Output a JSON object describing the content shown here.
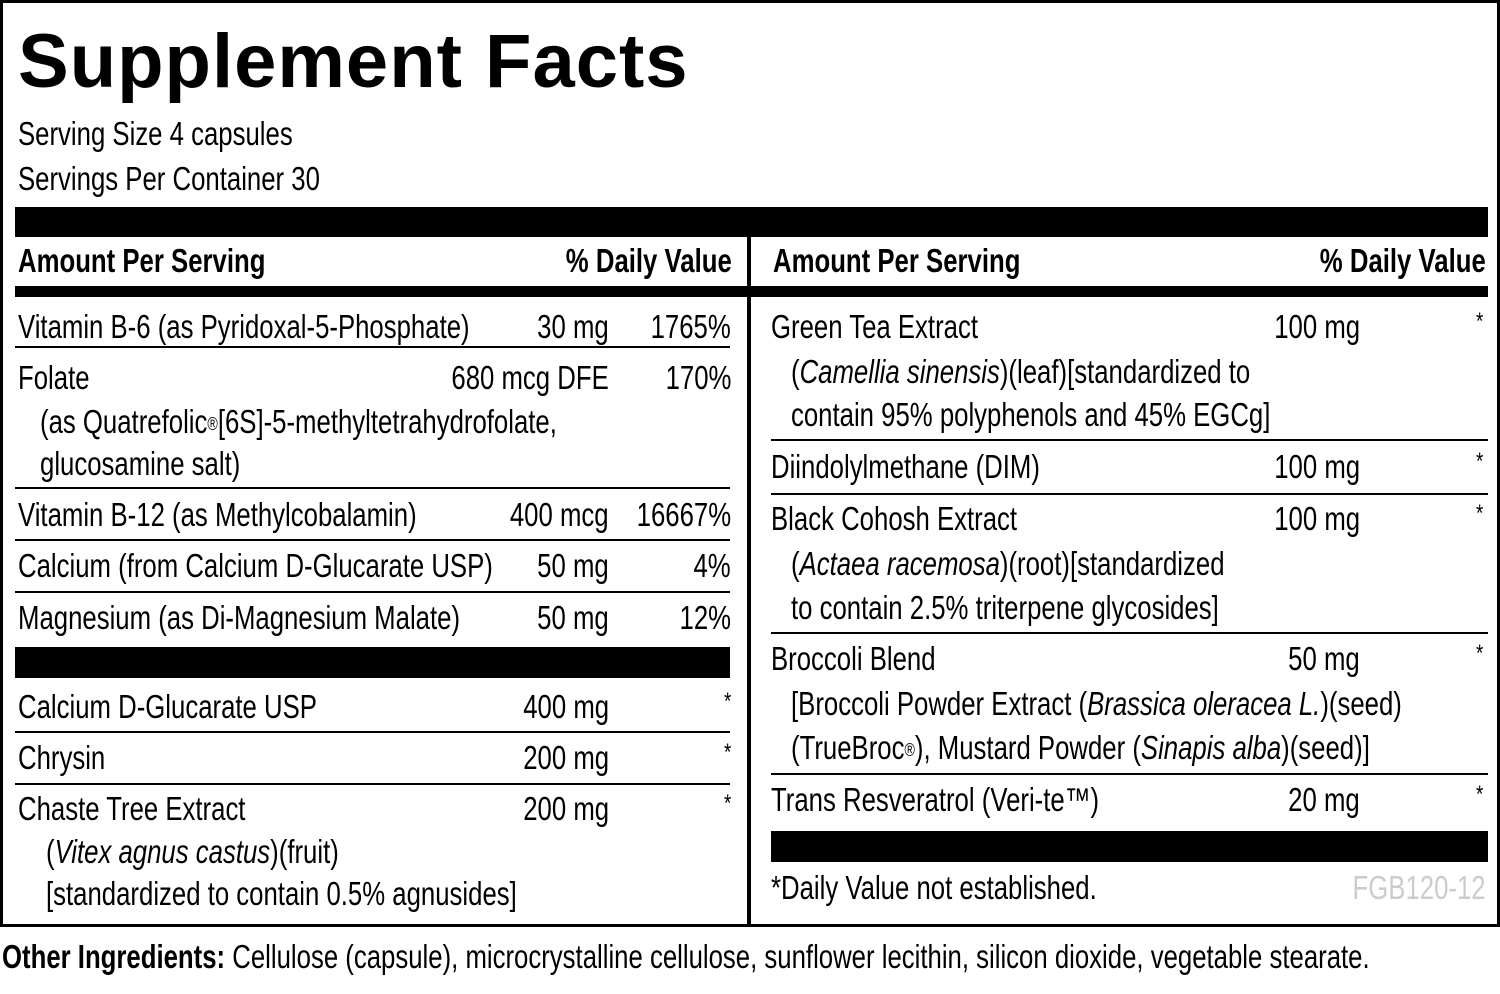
{
  "title": "Supplement Facts",
  "serving_size": "Serving Size 4 capsules",
  "servings_per_container": "Servings Per Container 30",
  "header": {
    "amount": "Amount Per Serving",
    "dv": "% Daily Value"
  },
  "left": {
    "b6": {
      "name": "Vitamin B-6 (as Pyridoxal-5-Phosphate)",
      "amount": "30 mg",
      "dv": "1765%"
    },
    "folate": {
      "name": "Folate",
      "sub1a": "(as Quatrefolic",
      "sub1reg": "®",
      "sub1b": "[6S]-5-methyltetrahydrofolate,",
      "sub2": "glucosamine salt)",
      "amount": "680 mcg DFE",
      "dv": "170%"
    },
    "b12": {
      "name": "Vitamin B-12 (as Methylcobalamin)",
      "amount": "400 mcg",
      "dv": "16667%"
    },
    "calcium": {
      "name": "Calcium (from Calcium D-Glucarate USP)",
      "amount": "50 mg",
      "dv": "4%"
    },
    "magnesium": {
      "name": "Magnesium (as Di-Magnesium Malate)",
      "amount": "50 mg",
      "dv": "12%"
    },
    "glucarate": {
      "name": "Calcium D-Glucarate USP",
      "amount": "400 mg",
      "dv": "*"
    },
    "chrysin": {
      "name": "Chrysin",
      "amount": "200 mg",
      "dv": "*"
    },
    "chaste": {
      "name": "Chaste Tree Extract",
      "sub1a": "(",
      "sub1i": "Vitex agnus castus",
      "sub1b": ")(fruit)",
      "sub2": "[standardized to contain 0.5% agnusides]",
      "amount": "200 mg",
      "dv": "*"
    }
  },
  "right": {
    "greentea": {
      "name": "Green Tea Extract",
      "sub1a": "(",
      "sub1i": "Camellia sinensis",
      "sub1b": ")(leaf)[standardized to",
      "sub2": "contain 95% polyphenols and 45% EGCg]",
      "amount": "100 mg",
      "dv": "*"
    },
    "dim": {
      "name": "Diindolylmethane (DIM)",
      "amount": "100 mg",
      "dv": "*"
    },
    "cohosh": {
      "name": "Black Cohosh Extract",
      "sub1a": "(",
      "sub1i": "Actaea racemosa",
      "sub1b": ")(root)[standardized",
      "sub2": "to contain 2.5% triterpene glycosides]",
      "amount": "100 mg",
      "dv": "*"
    },
    "broccoli": {
      "name": "Broccoli Blend",
      "sub1a": "[Broccoli Powder Extract (",
      "sub1i": "Brassica oleracea L.",
      "sub1b": ")(seed)",
      "sub2a": "(TrueBroc",
      "sub2reg": "®",
      "sub2b": "), Mustard Powder (",
      "sub2i": "Sinapis alba",
      "sub2c": ")(seed)]",
      "amount": "50 mg",
      "dv": "*"
    },
    "resveratrol": {
      "name": "Trans Resveratrol (Veri-te™)",
      "amount": "20 mg",
      "dv": "*"
    }
  },
  "footnote": "*Daily Value not established.",
  "code": "FGB120-12",
  "other": {
    "label": "Other Ingredients:",
    "text": " Cellulose (capsule), microcrystalline cellulose, sunflower lecithin, silicon dioxide, vegetable stearate."
  },
  "colors": {
    "text": "#000000",
    "code": "#cccccc"
  }
}
